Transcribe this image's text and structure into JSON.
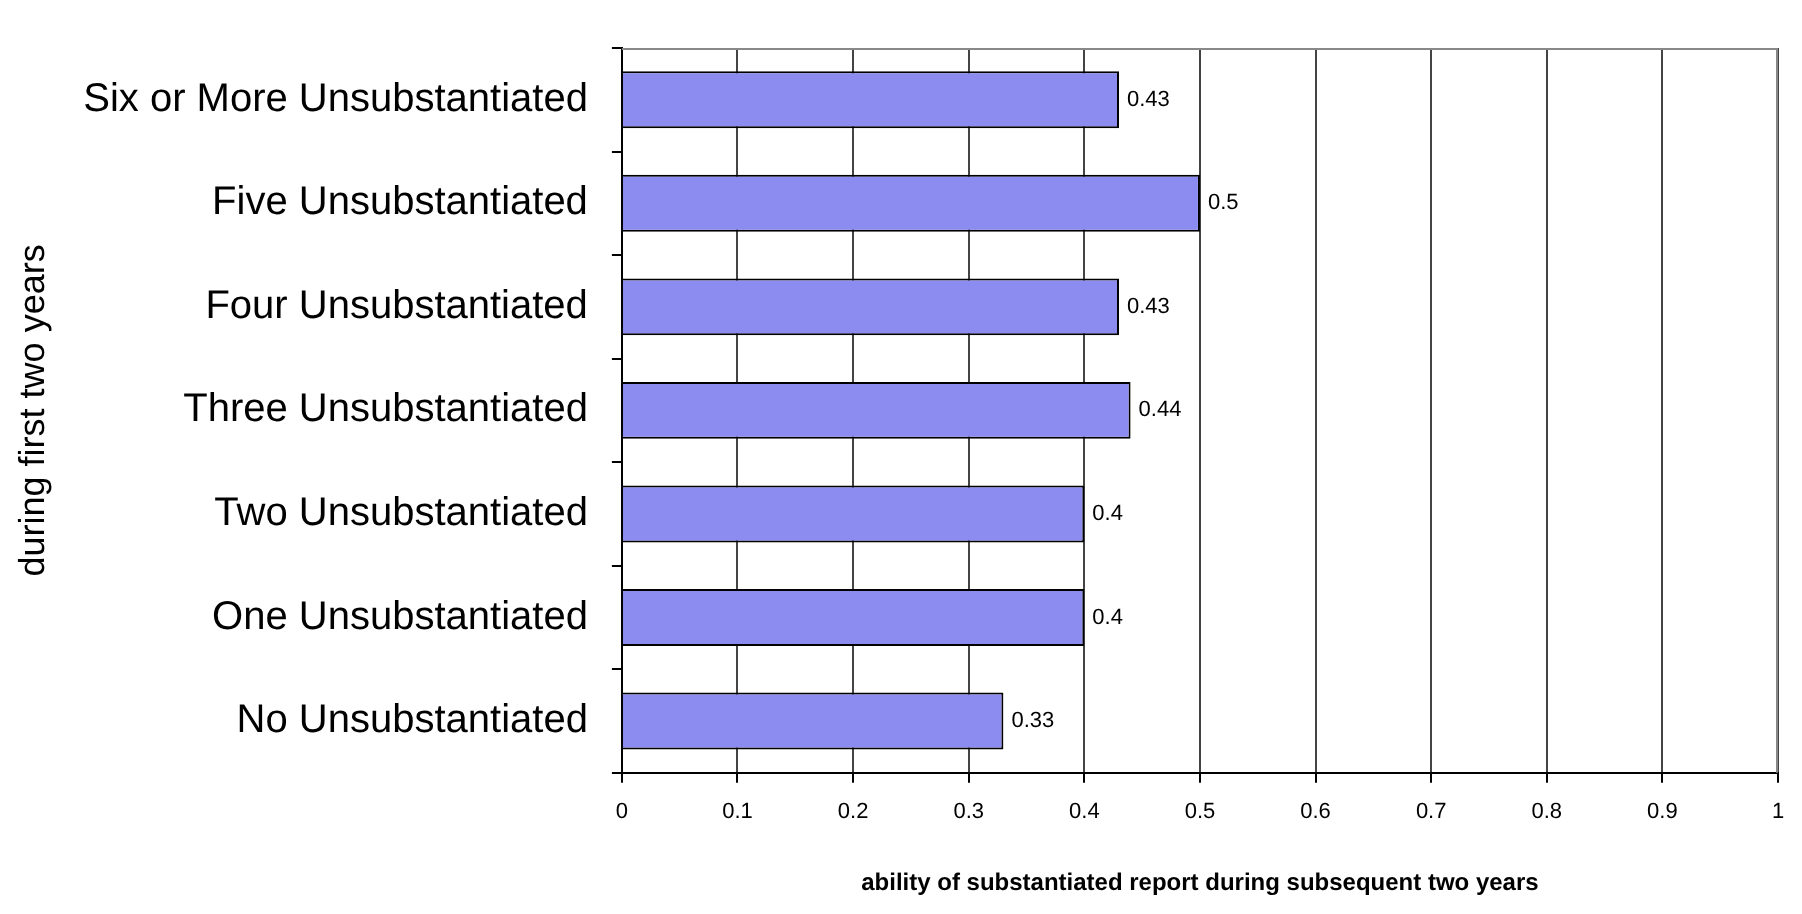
{
  "chart_data": {
    "type": "bar",
    "orientation": "horizontal",
    "xlabel": "ability of substantiated report during subsequent two years",
    "ylabel": "during first two years",
    "categories": [
      "Six or More Unsubstantiated",
      "Five Unsubstantiated",
      "Four Unsubstantiated",
      "Three Unsubstantiated",
      "Two Unsubstantiated",
      "One Unsubstantiated",
      "No Unsubstantiated"
    ],
    "values": [
      0.43,
      0.5,
      0.43,
      0.44,
      0.4,
      0.4,
      0.33
    ],
    "color": "#8c8cf0",
    "xlim": [
      0,
      1
    ],
    "xticks": [
      0,
      0.1,
      0.2,
      0.3,
      0.4,
      0.5,
      0.6,
      0.7,
      0.8,
      0.9,
      1
    ],
    "grid": "x",
    "data_labels": true,
    "legend": false
  }
}
